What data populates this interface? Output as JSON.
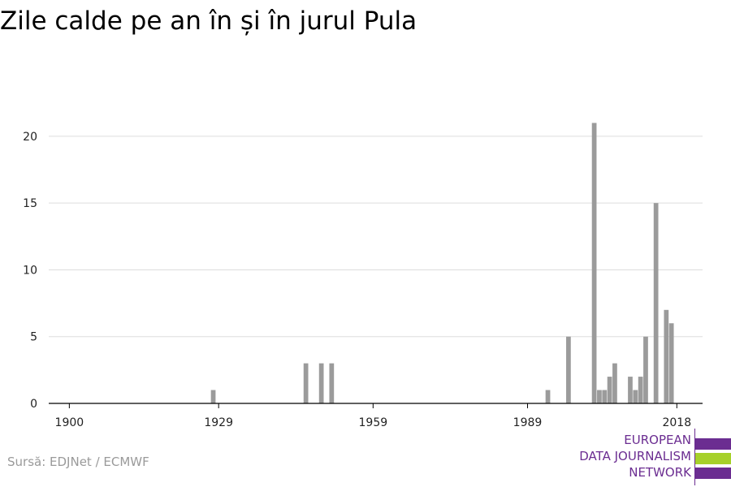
{
  "header": {
    "title": "Zile calde pe an în și în jurul Pula"
  },
  "footer": {
    "source": "Sursă: EDJNet / ECMWF"
  },
  "logo": {
    "lines": [
      "EUROPEAN",
      "DATA JOURNALISM",
      "NETWORK"
    ],
    "colors": [
      "#6b2d91",
      "#a6d12a",
      "#6b2d91"
    ]
  },
  "chart_data": {
    "type": "bar",
    "title": "Zile calde pe an în și în jurul Pula",
    "xlabel": "",
    "ylabel": "",
    "xlim": [
      1896,
      2023
    ],
    "ylim": [
      0,
      22
    ],
    "xticks": [
      1900,
      1929,
      1959,
      1989,
      2018
    ],
    "yticks": [
      0,
      5,
      10,
      15,
      20
    ],
    "grid": true,
    "bar_color": "#9b9b9b",
    "series": [
      {
        "x": [
          1928,
          1946,
          1949,
          1951,
          1993,
          1997,
          2002,
          2003,
          2004,
          2005,
          2006,
          2009,
          2010,
          2011,
          2012,
          2014,
          2016,
          2017
        ],
        "values": [
          1,
          3,
          3,
          3,
          1,
          5,
          21,
          1,
          1,
          2,
          3,
          2,
          1,
          2,
          5,
          15,
          7,
          6
        ]
      }
    ]
  }
}
